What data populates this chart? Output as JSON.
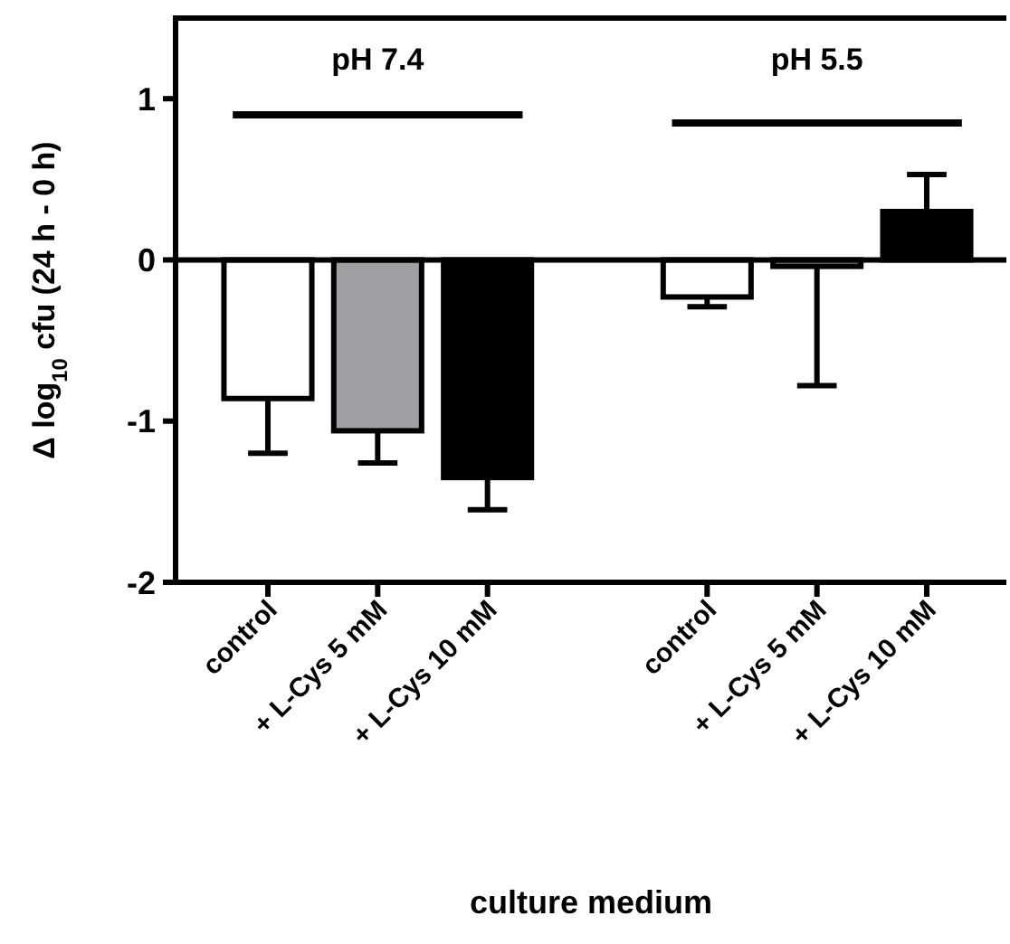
{
  "chart_data": {
    "type": "bar",
    "xlabel": "culture medium",
    "ylabel": "Δ log$_{10}$ cfu (24 h - 0 h)",
    "categories": [
      "control",
      "+ L-Cys 5 mM",
      "+ L-Cys 10 mM",
      null,
      "control",
      "+ L-Cys 5 mM",
      "+ L-Cys 10 mM"
    ],
    "values": [
      -0.86,
      -1.06,
      -1.35,
      null,
      -0.23,
      -0.04,
      0.3
    ],
    "colors": [
      "#ffffff",
      "#a0a0a4",
      "#000000",
      null,
      "#ffffff",
      "#a0a0a4",
      "#000000"
    ],
    "errors": [
      [
        -1.2,
        -0.86
      ],
      [
        -1.26,
        -1.06
      ],
      [
        -1.55,
        -1.35
      ],
      null,
      [
        -0.29,
        -0.23
      ],
      [
        -0.78,
        -0.04
      ],
      [
        0.3,
        0.53
      ]
    ],
    "ylim": [
      -2,
      1.5
    ],
    "yticks": [
      -2,
      -1,
      0,
      1
    ],
    "ref_lines": [
      {
        "axis": "y",
        "value": 0
      }
    ],
    "annotations": [
      "pH 7.4",
      "pH 5.5"
    ],
    "grid": false
  }
}
